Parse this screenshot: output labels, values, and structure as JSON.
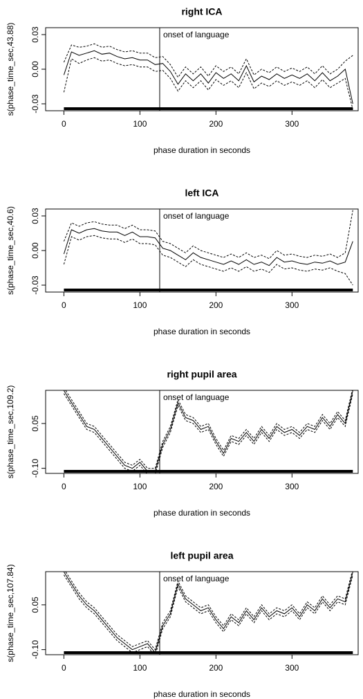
{
  "chart_data": [
    {
      "type": "line",
      "title": "right ICA",
      "xlabel": "phase duration in seconds",
      "ylabel": "s(phase_time_sec,43.88)",
      "annotation": {
        "x": 126,
        "label": "onset of language"
      },
      "x": [
        0,
        10,
        20,
        30,
        40,
        50,
        60,
        70,
        80,
        90,
        100,
        110,
        120,
        130,
        140,
        150,
        160,
        170,
        180,
        190,
        200,
        210,
        220,
        230,
        240,
        250,
        260,
        270,
        280,
        290,
        300,
        310,
        320,
        330,
        340,
        350,
        360,
        370,
        380
      ],
      "series": [
        {
          "color": "#000000",
          "linestyle": "solid",
          "values": [
            -0.005,
            0.015,
            0.012,
            0.014,
            0.016,
            0.013,
            0.014,
            0.011,
            0.009,
            0.01,
            0.008,
            0.008,
            0.004,
            0.005,
            -0.002,
            -0.013,
            -0.004,
            -0.01,
            -0.004,
            -0.012,
            -0.003,
            -0.008,
            -0.004,
            -0.01,
            0.003,
            -0.011,
            -0.006,
            -0.009,
            -0.004,
            -0.008,
            -0.005,
            -0.008,
            -0.004,
            -0.01,
            -0.003,
            -0.01,
            -0.006,
            0.0,
            -0.03
          ]
        },
        {
          "color": "#000000",
          "linestyle": "dashed",
          "values": [
            0.006,
            0.021,
            0.019,
            0.02,
            0.022,
            0.019,
            0.02,
            0.017,
            0.015,
            0.016,
            0.014,
            0.014,
            0.01,
            0.011,
            0.004,
            -0.007,
            0.002,
            -0.004,
            0.002,
            -0.006,
            0.003,
            -0.002,
            0.002,
            -0.004,
            0.009,
            -0.005,
            0.0,
            -0.003,
            0.002,
            -0.002,
            0.001,
            -0.002,
            0.002,
            -0.004,
            0.003,
            -0.004,
            0.0,
            0.007,
            0.012
          ]
        },
        {
          "color": "#000000",
          "linestyle": "dashed",
          "values": [
            -0.02,
            0.009,
            0.005,
            0.008,
            0.01,
            0.007,
            0.008,
            0.005,
            0.003,
            0.004,
            0.002,
            0.002,
            -0.002,
            -0.001,
            -0.008,
            -0.019,
            -0.01,
            -0.016,
            -0.01,
            -0.018,
            -0.009,
            -0.014,
            -0.01,
            -0.016,
            -0.003,
            -0.017,
            -0.012,
            -0.015,
            -0.01,
            -0.014,
            -0.011,
            -0.014,
            -0.01,
            -0.016,
            -0.009,
            -0.016,
            -0.012,
            -0.008,
            -0.035
          ]
        }
      ],
      "xlim": [
        -24,
        387
      ],
      "xticks": [
        0,
        100,
        200,
        300
      ],
      "ylim": [
        -0.036,
        0.036
      ],
      "yticks": [
        -0.03,
        {
          "value": 0,
          "label": "0.00"
        },
        0.03
      ]
    },
    {
      "type": "line",
      "title": "left ICA",
      "xlabel": "phase duration in seconds",
      "ylabel": "s(phase_time_sec,40.6)",
      "annotation": {
        "x": 126,
        "label": "onset of language"
      },
      "x": [
        0,
        10,
        20,
        30,
        40,
        50,
        60,
        70,
        80,
        90,
        100,
        110,
        120,
        130,
        140,
        150,
        160,
        170,
        180,
        190,
        200,
        210,
        220,
        230,
        240,
        250,
        260,
        270,
        280,
        290,
        300,
        310,
        320,
        330,
        340,
        350,
        360,
        370,
        380
      ],
      "series": [
        {
          "color": "#000000",
          "linestyle": "solid",
          "values": [
            -0.003,
            0.018,
            0.015,
            0.018,
            0.019,
            0.017,
            0.016,
            0.016,
            0.013,
            0.016,
            0.012,
            0.012,
            0.011,
            0.002,
            0.0,
            -0.004,
            -0.008,
            -0.002,
            -0.006,
            -0.008,
            -0.01,
            -0.012,
            -0.009,
            -0.012,
            -0.008,
            -0.012,
            -0.01,
            -0.013,
            -0.006,
            -0.01,
            -0.009,
            -0.011,
            -0.012,
            -0.01,
            -0.011,
            -0.009,
            -0.012,
            -0.01,
            0.008
          ]
        },
        {
          "color": "#000000",
          "linestyle": "dashed",
          "values": [
            0.008,
            0.024,
            0.021,
            0.024,
            0.025,
            0.023,
            0.022,
            0.022,
            0.019,
            0.022,
            0.018,
            0.018,
            0.017,
            0.008,
            0.006,
            0.002,
            -0.002,
            0.004,
            0.0,
            -0.002,
            -0.004,
            -0.006,
            -0.003,
            -0.006,
            -0.002,
            -0.006,
            -0.004,
            -0.007,
            0.0,
            -0.004,
            -0.003,
            -0.005,
            -0.006,
            -0.004,
            -0.005,
            -0.003,
            -0.006,
            -0.002,
            0.035
          ]
        },
        {
          "color": "#000000",
          "linestyle": "dashed",
          "values": [
            -0.012,
            0.012,
            0.009,
            0.012,
            0.013,
            0.011,
            0.01,
            0.01,
            0.007,
            0.01,
            0.006,
            0.006,
            0.005,
            -0.004,
            -0.006,
            -0.01,
            -0.014,
            -0.008,
            -0.012,
            -0.014,
            -0.016,
            -0.018,
            -0.015,
            -0.018,
            -0.014,
            -0.018,
            -0.016,
            -0.019,
            -0.012,
            -0.016,
            -0.015,
            -0.017,
            -0.018,
            -0.016,
            -0.017,
            -0.015,
            -0.018,
            -0.02,
            -0.03
          ]
        }
      ],
      "xlim": [
        -24,
        387
      ],
      "xticks": [
        0,
        100,
        200,
        300
      ],
      "ylim": [
        -0.036,
        0.036
      ],
      "yticks": [
        -0.03,
        {
          "value": 0,
          "label": "0.00"
        },
        0.03
      ]
    },
    {
      "type": "line",
      "title": "right pupil area",
      "xlabel": "phase duration in seconds",
      "ylabel": "s(phase_time_sec,109.2)",
      "annotation": {
        "x": 126,
        "label": "onset of language"
      },
      "x": [
        0,
        10,
        20,
        30,
        40,
        50,
        60,
        70,
        80,
        90,
        100,
        110,
        120,
        130,
        140,
        150,
        160,
        170,
        180,
        190,
        200,
        210,
        220,
        230,
        240,
        250,
        260,
        270,
        280,
        290,
        300,
        310,
        320,
        330,
        340,
        350,
        360,
        370,
        380
      ],
      "series": [
        {
          "color": "#000000",
          "linestyle": "solid",
          "values": [
            0.16,
            0.12,
            0.08,
            0.04,
            0.03,
            0.0,
            -0.03,
            -0.06,
            -0.09,
            -0.1,
            -0.08,
            -0.11,
            -0.11,
            -0.02,
            0.03,
            0.12,
            0.07,
            0.06,
            0.03,
            0.04,
            -0.01,
            -0.05,
            0.0,
            -0.01,
            0.02,
            -0.01,
            0.03,
            0.0,
            0.04,
            0.02,
            0.03,
            0.01,
            0.04,
            0.03,
            0.07,
            0.04,
            0.08,
            0.05,
            0.16
          ]
        },
        {
          "color": "#000000",
          "linestyle": "dashed",
          "values": [
            0.17,
            0.13,
            0.09,
            0.05,
            0.04,
            0.01,
            -0.02,
            -0.05,
            -0.08,
            -0.09,
            -0.07,
            -0.1,
            -0.1,
            -0.01,
            0.04,
            0.13,
            0.08,
            0.07,
            0.04,
            0.05,
            0.0,
            -0.04,
            0.01,
            0.0,
            0.03,
            0.0,
            0.04,
            0.01,
            0.05,
            0.03,
            0.04,
            0.02,
            0.05,
            0.04,
            0.08,
            0.05,
            0.09,
            0.06,
            0.17
          ]
        },
        {
          "color": "#000000",
          "linestyle": "dashed",
          "values": [
            0.15,
            0.11,
            0.07,
            0.03,
            0.02,
            -0.01,
            -0.04,
            -0.07,
            -0.1,
            -0.11,
            -0.09,
            -0.12,
            -0.12,
            -0.03,
            0.02,
            0.11,
            0.06,
            0.05,
            0.02,
            0.03,
            -0.02,
            -0.06,
            -0.01,
            -0.02,
            0.01,
            -0.02,
            0.02,
            -0.01,
            0.03,
            0.01,
            0.02,
            0.0,
            0.03,
            0.02,
            0.06,
            0.03,
            0.07,
            0.04,
            0.15
          ]
        }
      ],
      "xlim": [
        -24,
        387
      ],
      "xticks": [
        0,
        100,
        200,
        300
      ],
      "ylim": [
        -0.117,
        0.161
      ],
      "yticks": [
        {
          "value": -0.1,
          "label": "-0.10"
        },
        0.05
      ]
    },
    {
      "type": "line",
      "title": "left pupil area",
      "xlabel": "phase duration in seconds",
      "ylabel": "s(phase_time_sec,107.84)",
      "annotation": {
        "x": 126,
        "label": "onset of language"
      },
      "x": [
        0,
        10,
        20,
        30,
        40,
        50,
        60,
        70,
        80,
        90,
        100,
        110,
        120,
        130,
        140,
        150,
        160,
        170,
        180,
        190,
        200,
        210,
        220,
        230,
        240,
        250,
        260,
        270,
        280,
        290,
        300,
        310,
        320,
        330,
        340,
        350,
        360,
        370,
        380
      ],
      "series": [
        {
          "color": "#000000",
          "linestyle": "solid",
          "values": [
            0.16,
            0.12,
            0.08,
            0.05,
            0.03,
            0.0,
            -0.03,
            -0.06,
            -0.08,
            -0.1,
            -0.09,
            -0.08,
            -0.11,
            -0.02,
            0.02,
            0.12,
            0.07,
            0.05,
            0.03,
            0.04,
            0.0,
            -0.03,
            0.01,
            -0.01,
            0.03,
            0.0,
            0.04,
            0.01,
            0.03,
            0.02,
            0.04,
            0.01,
            0.05,
            0.03,
            0.07,
            0.04,
            0.07,
            0.06,
            0.16
          ]
        },
        {
          "color": "#000000",
          "linestyle": "dashed",
          "values": [
            0.17,
            0.13,
            0.09,
            0.06,
            0.04,
            0.01,
            -0.02,
            -0.05,
            -0.07,
            -0.09,
            -0.08,
            -0.07,
            -0.1,
            -0.01,
            0.03,
            0.13,
            0.08,
            0.06,
            0.04,
            0.05,
            0.01,
            -0.02,
            0.02,
            0.0,
            0.04,
            0.01,
            0.05,
            0.02,
            0.04,
            0.03,
            0.05,
            0.02,
            0.06,
            0.04,
            0.08,
            0.05,
            0.08,
            0.07,
            0.17
          ]
        },
        {
          "color": "#000000",
          "linestyle": "dashed",
          "values": [
            0.15,
            0.11,
            0.07,
            0.04,
            0.02,
            -0.01,
            -0.04,
            -0.07,
            -0.09,
            -0.11,
            -0.1,
            -0.09,
            -0.12,
            -0.03,
            0.01,
            0.11,
            0.06,
            0.04,
            0.02,
            0.03,
            -0.01,
            -0.04,
            0.0,
            -0.02,
            0.02,
            -0.01,
            0.03,
            0.0,
            0.02,
            0.01,
            0.03,
            0.0,
            0.04,
            0.02,
            0.06,
            0.03,
            0.06,
            0.05,
            0.15
          ]
        }
      ],
      "xlim": [
        -24,
        387
      ],
      "xticks": [
        0,
        100,
        200,
        300
      ],
      "ylim": [
        -0.117,
        0.161
      ],
      "yticks": [
        {
          "value": -0.1,
          "label": "-0.10"
        },
        0.05
      ]
    }
  ]
}
